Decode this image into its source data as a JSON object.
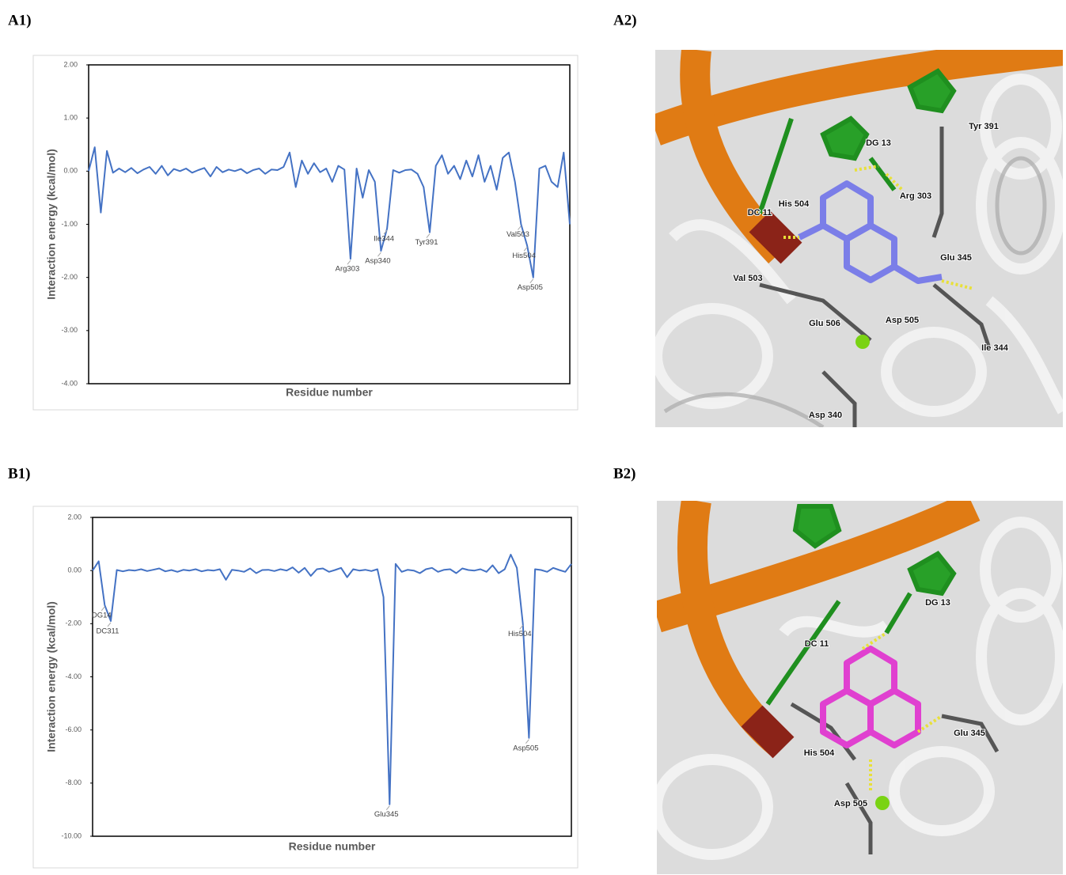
{
  "panel_labels": [
    "A1)",
    "A2)",
    "B1)",
    "B2)"
  ],
  "structure_labels": [
    [
      "DG 13",
      "Tyr 391",
      "Arg 303",
      "His 504",
      "DC 11",
      "Glu 345",
      "Val 503",
      "Glu 506",
      "Asp 505",
      "Ile 344",
      "Asp 340"
    ],
    [
      "DG 13",
      "DC 11",
      "Glu 345",
      "His 504",
      "Asp 505"
    ]
  ],
  "chart_data": [
    {
      "type": "line",
      "x_label": "Residue number",
      "y_label": "Interaction energy (kcal/mol)",
      "color": "#4472c4",
      "ylim": [
        -4,
        2
      ],
      "yticks": [
        {
          "value": 2,
          "label": "2.00"
        },
        {
          "value": 1,
          "label": "1.00"
        },
        {
          "value": 0,
          "label": "0.00"
        },
        {
          "value": -1,
          "label": "-1.00"
        },
        {
          "value": -2,
          "label": "-2.00"
        },
        {
          "value": -3,
          "label": "-3.00"
        },
        {
          "value": -4,
          "label": "-4.00"
        }
      ],
      "categories": [
        null,
        null,
        null,
        null,
        null,
        null,
        null,
        null,
        null,
        null,
        null,
        null,
        null,
        null,
        null,
        null,
        null,
        null,
        null,
        null,
        null,
        null,
        null,
        null,
        null,
        null,
        null,
        null,
        null,
        null,
        null,
        null,
        null,
        null,
        null,
        null,
        null,
        null,
        null,
        null,
        null,
        null,
        null,
        "Arg303",
        null,
        null,
        null,
        null,
        "Asp340",
        "Ile344",
        null,
        null,
        null,
        null,
        null,
        null,
        "Tyr391",
        null,
        null,
        null,
        null,
        null,
        null,
        null,
        null,
        null,
        null,
        null,
        null,
        null,
        null,
        "Val503",
        "His504",
        "Asp505",
        null,
        null,
        null,
        null,
        null,
        null
      ],
      "values": [
        0,
        0.45,
        -0.78,
        0.38,
        -0.03,
        0.05,
        -0.02,
        0.06,
        -0.04,
        0.03,
        0.08,
        -0.05,
        0.1,
        -0.08,
        0.04,
        0,
        0.05,
        -0.03,
        0.02,
        0.06,
        -0.1,
        0.08,
        -0.02,
        0.03,
        0,
        0.04,
        -0.04,
        0.02,
        0.05,
        -0.05,
        0.03,
        0.02,
        0.08,
        0.35,
        -0.3,
        0.2,
        -0.05,
        0.15,
        -0.02,
        0.05,
        -0.2,
        0.1,
        0.03,
        -1.65,
        0.05,
        -0.5,
        0.02,
        -0.2,
        -1.5,
        -1.08,
        0.02,
        -0.03,
        0.02,
        0.03,
        -0.05,
        -0.3,
        -1.15,
        0.1,
        0.3,
        -0.05,
        0.1,
        -0.15,
        0.2,
        -0.1,
        0.3,
        -0.2,
        0.1,
        -0.35,
        0.25,
        0.35,
        -0.2,
        -1.0,
        -1.4,
        -2.0,
        0.05,
        0.1,
        -0.2,
        -0.3,
        0.35,
        -1.0
      ]
    },
    {
      "type": "line",
      "x_label": "Residue number",
      "y_label": "Interaction energy (kcal/mol)",
      "color": "#4472c4",
      "ylim": [
        -10,
        2
      ],
      "yticks": [
        {
          "value": 2,
          "label": "2.00"
        },
        {
          "value": 0,
          "label": "0.00"
        },
        {
          "value": -2,
          "label": "-2.00"
        },
        {
          "value": -4,
          "label": "-4.00"
        },
        {
          "value": -6,
          "label": "-6.00"
        },
        {
          "value": -8,
          "label": "-8.00"
        },
        {
          "value": -10,
          "label": "-10.00"
        }
      ],
      "categories": [
        null,
        null,
        "DG14",
        "DC311",
        null,
        null,
        null,
        null,
        null,
        null,
        null,
        null,
        null,
        null,
        null,
        null,
        null,
        null,
        null,
        null,
        null,
        null,
        null,
        null,
        null,
        null,
        null,
        null,
        null,
        null,
        null,
        null,
        null,
        null,
        null,
        null,
        null,
        null,
        null,
        null,
        null,
        null,
        null,
        null,
        null,
        null,
        null,
        null,
        null,
        "Glu345",
        null,
        null,
        null,
        null,
        null,
        null,
        null,
        null,
        null,
        null,
        null,
        null,
        null,
        null,
        null,
        null,
        null,
        null,
        null,
        null,
        null,
        "His504",
        "Asp505",
        null,
        null,
        null,
        null,
        null,
        null,
        null
      ],
      "values": [
        0,
        0.35,
        -1.3,
        -1.9,
        0.02,
        -0.03,
        0.02,
        0,
        0.05,
        -0.02,
        0.03,
        0.08,
        -0.03,
        0.02,
        -0.05,
        0.03,
        0,
        0.05,
        -0.03,
        0.02,
        0,
        0.05,
        -0.35,
        0.03,
        0,
        -0.05,
        0.08,
        -0.1,
        0.02,
        0.03,
        -0.02,
        0.05,
        0,
        0.12,
        -0.08,
        0.1,
        -0.2,
        0.05,
        0.08,
        -0.05,
        0.02,
        0.1,
        -0.25,
        0.05,
        0,
        0.03,
        -0.02,
        0.05,
        -1.0,
        -8.8,
        0.25,
        -0.05,
        0.03,
        0,
        -0.1,
        0.05,
        0.1,
        -0.05,
        0.03,
        0.05,
        -0.1,
        0.08,
        0.02,
        0,
        0.05,
        -0.05,
        0.2,
        -0.1,
        0.05,
        0.6,
        0.1,
        -2.0,
        -6.3,
        0.05,
        0.02,
        -0.05,
        0.1,
        0.02,
        -0.05,
        0.25
      ]
    }
  ]
}
